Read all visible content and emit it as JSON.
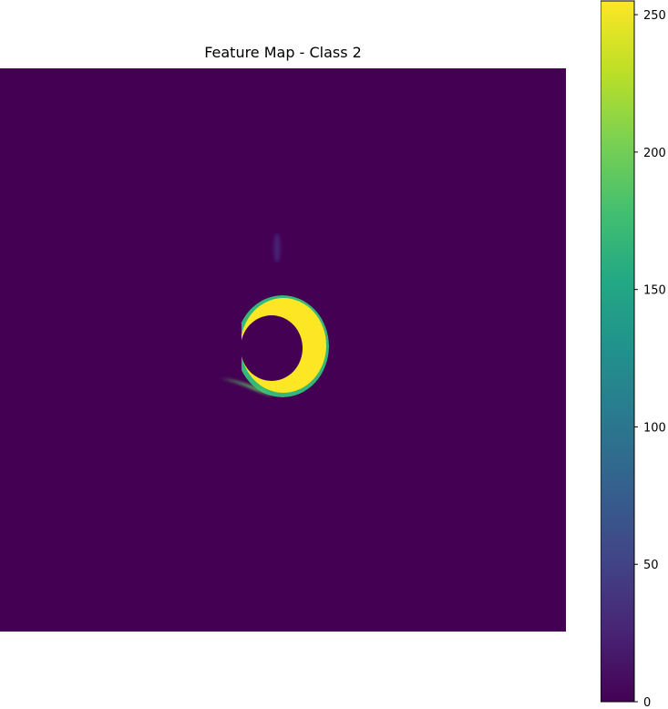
{
  "chart_data": {
    "type": "heatmap",
    "title": "Feature Map - Class 2",
    "colormap": "viridis",
    "value_range": [
      0,
      255
    ],
    "colorbar_ticks": [
      0,
      50,
      100,
      150,
      200,
      250
    ],
    "axes_visible": false,
    "background_value": 0,
    "features": [
      {
        "kind": "crescent",
        "value": 255,
        "description_center": [
          0.49,
          0.48
        ],
        "outer_radius": 0.09,
        "inner_radius": 0.055,
        "opening": "left"
      },
      {
        "kind": "faint-blob",
        "value": 40,
        "description_center": [
          0.49,
          0.32
        ]
      }
    ]
  }
}
